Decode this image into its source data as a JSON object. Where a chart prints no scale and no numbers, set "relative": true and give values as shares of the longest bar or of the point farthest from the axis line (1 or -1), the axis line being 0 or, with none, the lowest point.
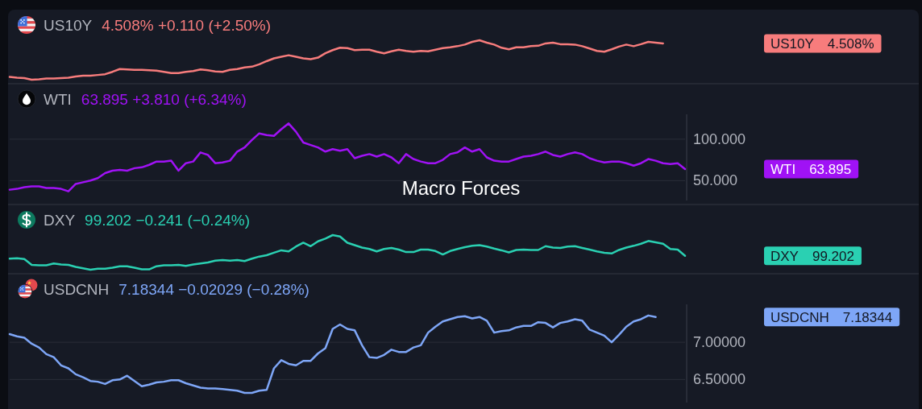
{
  "chart_data": [
    {
      "type": "line",
      "title": "US10Y",
      "subtitle": "4.508% +0.110 (+2.50%)",
      "relative": true,
      "categories": [
        null,
        null,
        null,
        null,
        null,
        null,
        null,
        null,
        null,
        null,
        null,
        null,
        null,
        null,
        null,
        null,
        null,
        null,
        null,
        null,
        null,
        null,
        null,
        null,
        null,
        null,
        null,
        null,
        null,
        null,
        null,
        null,
        null,
        null,
        null,
        null,
        null,
        null,
        null,
        null,
        null,
        null,
        null,
        null,
        null,
        null,
        null,
        null,
        null,
        null,
        null,
        null,
        null,
        null,
        null,
        null,
        null,
        null,
        null,
        null,
        null,
        null,
        null,
        null,
        null,
        null,
        null,
        null,
        null,
        null,
        null,
        null,
        null,
        null,
        null,
        null,
        null,
        null,
        null,
        null,
        null,
        null,
        null,
        null,
        null,
        null,
        null,
        null,
        null,
        null,
        null,
        null,
        null
      ],
      "series": [
        {
          "name": "US10Y",
          "color": "#f77c7c",
          "values": [
            0.07,
            0.05,
            0.04,
            0,
            0.01,
            0.03,
            0.03,
            0.04,
            0.05,
            0.08,
            0.1,
            0.1,
            0.12,
            0.14,
            0.2,
            0.27,
            0.26,
            0.25,
            0.25,
            0.24,
            0.23,
            0.2,
            0.17,
            0.17,
            0.2,
            0.22,
            0.26,
            0.24,
            0.21,
            0.2,
            0.25,
            0.27,
            0.31,
            0.33,
            0.39,
            0.47,
            0.54,
            0.58,
            0.62,
            0.58,
            0.54,
            0.52,
            0.56,
            0.67,
            0.75,
            0.81,
            0.8,
            0.75,
            0.76,
            0.76,
            0.71,
            0.67,
            0.72,
            0.76,
            0.73,
            0.71,
            0.73,
            0.72,
            0.76,
            0.8,
            0.82,
            0.85,
            0.89,
            0.96,
            1,
            0.94,
            0.89,
            0.81,
            0.77,
            0.82,
            0.82,
            0.85,
            0.86,
            0.92,
            0.94,
            0.9,
            0.9,
            0.89,
            0.85,
            0.79,
            0.73,
            0.71,
            0.77,
            0.84,
            0.89,
            0.85,
            0.9,
            0.96,
            0.94,
            0.92,
            null,
            null,
            null
          ]
        }
      ],
      "annotations": [
        {
          "text": "4.508%"
        }
      ]
    },
    {
      "type": "line",
      "title": "WTI",
      "subtitle": "63.895 +3.810 (+6.34%)",
      "ylim": [
        26,
        130
      ],
      "yticks": [
        {
          "value": 100,
          "label": "100.000"
        },
        {
          "value": 50,
          "label": "50.000"
        }
      ],
      "grid": "y",
      "tick_labels": "y",
      "categories": [
        null,
        null,
        null,
        null,
        null,
        null,
        null,
        null,
        null,
        null,
        null,
        null,
        null,
        null,
        null,
        null,
        null,
        null,
        null,
        null,
        null,
        null,
        null,
        null,
        null,
        null,
        null,
        null,
        null,
        null,
        null,
        null,
        null,
        null,
        null,
        null,
        null,
        null,
        null,
        null,
        null,
        null,
        null,
        null,
        null,
        null,
        null,
        null,
        null,
        null,
        null,
        null,
        null,
        null,
        null,
        null,
        null,
        null,
        null,
        null,
        null,
        null,
        null,
        null,
        null,
        null,
        null,
        null,
        null,
        null,
        null,
        null,
        null,
        null,
        null,
        null,
        null,
        null,
        null,
        null,
        null,
        null,
        null,
        null,
        null,
        null,
        null,
        null,
        null,
        null,
        null,
        null,
        null
      ],
      "series": [
        {
          "name": "WTI",
          "color": "#a012f5",
          "values": [
            39,
            40,
            42,
            43,
            43,
            41,
            41,
            40,
            37,
            46,
            48,
            50,
            53,
            59,
            62,
            63,
            62,
            65,
            66,
            69,
            73,
            73,
            74,
            62,
            71,
            73,
            84,
            81,
            71,
            72,
            74,
            85,
            90,
            99,
            107,
            105,
            104,
            112,
            119,
            109,
            96,
            93,
            90,
            85,
            88,
            86,
            88,
            77,
            80,
            82,
            79,
            82,
            78,
            71,
            82,
            76,
            73,
            71,
            71,
            75,
            82,
            84,
            90,
            85,
            88,
            78,
            74,
            73,
            73,
            76,
            79,
            80,
            82,
            85,
            81,
            79,
            82,
            84,
            82,
            77,
            74,
            72,
            73,
            73,
            71,
            68,
            71,
            76,
            74,
            71,
            70,
            71,
            63.895
          ]
        }
      ],
      "annotations": [
        "Macro Forces",
        {
          "text": "63.895"
        }
      ]
    },
    {
      "type": "line",
      "title": "DXY",
      "subtitle": "99.202 −0.241 (−0.24%)",
      "relative": true,
      "categories": [
        null,
        null,
        null,
        null,
        null,
        null,
        null,
        null,
        null,
        null,
        null,
        null,
        null,
        null,
        null,
        null,
        null,
        null,
        null,
        null,
        null,
        null,
        null,
        null,
        null,
        null,
        null,
        null,
        null,
        null,
        null,
        null,
        null,
        null,
        null,
        null,
        null,
        null,
        null,
        null,
        null,
        null,
        null,
        null,
        null,
        null,
        null,
        null,
        null,
        null,
        null,
        null,
        null,
        null,
        null,
        null,
        null,
        null,
        null,
        null,
        null,
        null,
        null,
        null,
        null,
        null,
        null,
        null,
        null,
        null,
        null,
        null,
        null,
        null,
        null,
        null,
        null,
        null,
        null,
        null,
        null,
        null,
        null,
        null,
        null,
        null,
        null,
        null,
        null,
        null,
        null,
        null,
        null
      ],
      "series": [
        {
          "name": "DXY",
          "color": "#2ad0b2",
          "values": [
            0.32,
            0.33,
            0.31,
            0.14,
            0.13,
            0.13,
            0.18,
            0.15,
            0.14,
            0.08,
            0.04,
            0,
            0.03,
            0.03,
            0.06,
            0.1,
            0.1,
            0.06,
            0.01,
            0.01,
            0.1,
            0.13,
            0.13,
            0.14,
            0.11,
            0.15,
            0.18,
            0.21,
            0.26,
            0.28,
            0.26,
            0.28,
            0.25,
            0.32,
            0.38,
            0.42,
            0.49,
            0.56,
            0.53,
            0.67,
            0.78,
            0.68,
            0.82,
            0.9,
            1,
            0.96,
            0.78,
            0.71,
            0.64,
            0.6,
            0.53,
            0.6,
            0.63,
            0.58,
            0.51,
            0.51,
            0.58,
            0.58,
            0.54,
            0.44,
            0.54,
            0.6,
            0.65,
            0.69,
            0.71,
            0.67,
            0.61,
            0.56,
            0.5,
            0.57,
            0.58,
            0.57,
            0.57,
            0.68,
            0.64,
            0.63,
            0.67,
            0.68,
            0.63,
            0.58,
            0.53,
            0.49,
            0.47,
            0.57,
            0.64,
            0.69,
            0.75,
            0.83,
            0.79,
            0.75,
            0.6,
            0.58,
            0.4
          ]
        }
      ],
      "annotations": [
        {
          "text": "99.202"
        }
      ]
    },
    {
      "type": "line",
      "title": "USDCNH",
      "subtitle": "7.18344 −0.02029 (−0.28%)",
      "ylim": [
        6.19,
        7.51
      ],
      "yticks": [
        {
          "value": 7,
          "label": "7.00000"
        },
        {
          "value": 6.5,
          "label": "6.50000"
        }
      ],
      "grid": "y",
      "tick_labels": "y",
      "categories": [
        null,
        null,
        null,
        null,
        null,
        null,
        null,
        null,
        null,
        null,
        null,
        null,
        null,
        null,
        null,
        null,
        null,
        null,
        null,
        null,
        null,
        null,
        null,
        null,
        null,
        null,
        null,
        null,
        null,
        null,
        null,
        null,
        null,
        null,
        null,
        null,
        null,
        null,
        null,
        null,
        null,
        null,
        null,
        null,
        null,
        null,
        null,
        null,
        null,
        null,
        null,
        null,
        null,
        null,
        null,
        null,
        null,
        null,
        null,
        null,
        null,
        null,
        null,
        null,
        null,
        null,
        null,
        null,
        null,
        null,
        null,
        null,
        null,
        null,
        null,
        null,
        null,
        null,
        null,
        null,
        null,
        null,
        null,
        null,
        null,
        null,
        null,
        null,
        null,
        null,
        null,
        null,
        null
      ],
      "series": [
        {
          "name": "USDCNH",
          "color": "#7ea6f7",
          "values": [
            7.11,
            7.08,
            7.06,
            6.98,
            6.93,
            6.84,
            6.8,
            6.69,
            6.65,
            6.57,
            6.53,
            6.48,
            6.47,
            6.44,
            6.49,
            6.5,
            6.55,
            6.48,
            6.41,
            6.43,
            6.46,
            6.47,
            6.49,
            6.49,
            6.45,
            6.42,
            6.39,
            6.38,
            6.38,
            6.37,
            6.36,
            6.35,
            6.32,
            6.32,
            6.35,
            6.36,
            6.65,
            6.76,
            6.71,
            6.69,
            6.75,
            6.75,
            6.85,
            6.92,
            7.18,
            7.24,
            7.18,
            7.16,
            6.96,
            6.8,
            6.79,
            6.83,
            6.9,
            6.87,
            6.87,
            6.93,
            6.96,
            7.13,
            7.21,
            7.28,
            7.31,
            7.34,
            7.35,
            7.32,
            7.34,
            7.29,
            7.13,
            7.15,
            7.16,
            7.2,
            7.22,
            7.22,
            7.27,
            7.26,
            7.2,
            7.26,
            7.28,
            7.31,
            7.29,
            7.17,
            7.13,
            7.09,
            7.0,
            7.1,
            7.21,
            7.28,
            7.31,
            7.36,
            7.34,
            null,
            null,
            null,
            null
          ]
        }
      ],
      "annotations": [
        {
          "text": "7.18344"
        }
      ]
    }
  ]
}
